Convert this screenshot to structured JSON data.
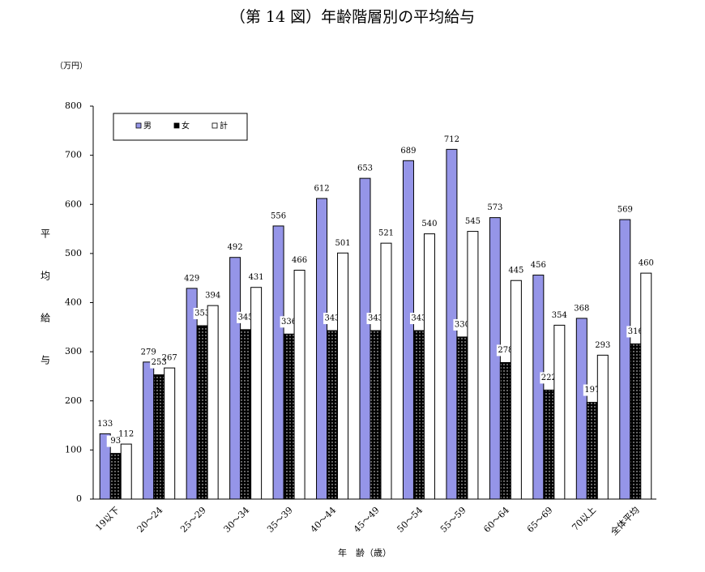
{
  "chart_data": {
    "type": "bar",
    "title": "（第 14 図）年齢階層別の平均給与",
    "unit_label": "（万円）",
    "y_label": "平均給与",
    "x_label": "年　齢（歳）",
    "categories": [
      "19以下",
      "20～24",
      "25～29",
      "30～34",
      "35～39",
      "40～44",
      "45～49",
      "50～54",
      "55～59",
      "60～64",
      "65～69",
      "70以上",
      "全体平均"
    ],
    "series": [
      {
        "name": "男",
        "color": "#9595e8",
        "values": [
          133,
          279,
          429,
          492,
          556,
          612,
          653,
          689,
          712,
          573,
          456,
          368,
          569
        ]
      },
      {
        "name": "女",
        "color": "#000000",
        "values": [
          93,
          253,
          353,
          345,
          336,
          343,
          343,
          343,
          330,
          278,
          222,
          197,
          316
        ]
      },
      {
        "name": "計",
        "color": "#ffffff",
        "values": [
          112,
          267,
          394,
          431,
          466,
          501,
          521,
          540,
          545,
          445,
          354,
          293,
          460
        ]
      }
    ],
    "ylim": [
      0,
      800
    ],
    "yticks": [
      0,
      100,
      200,
      300,
      400,
      500,
      600,
      700,
      800
    ],
    "grid": false,
    "legend": "top-left"
  }
}
